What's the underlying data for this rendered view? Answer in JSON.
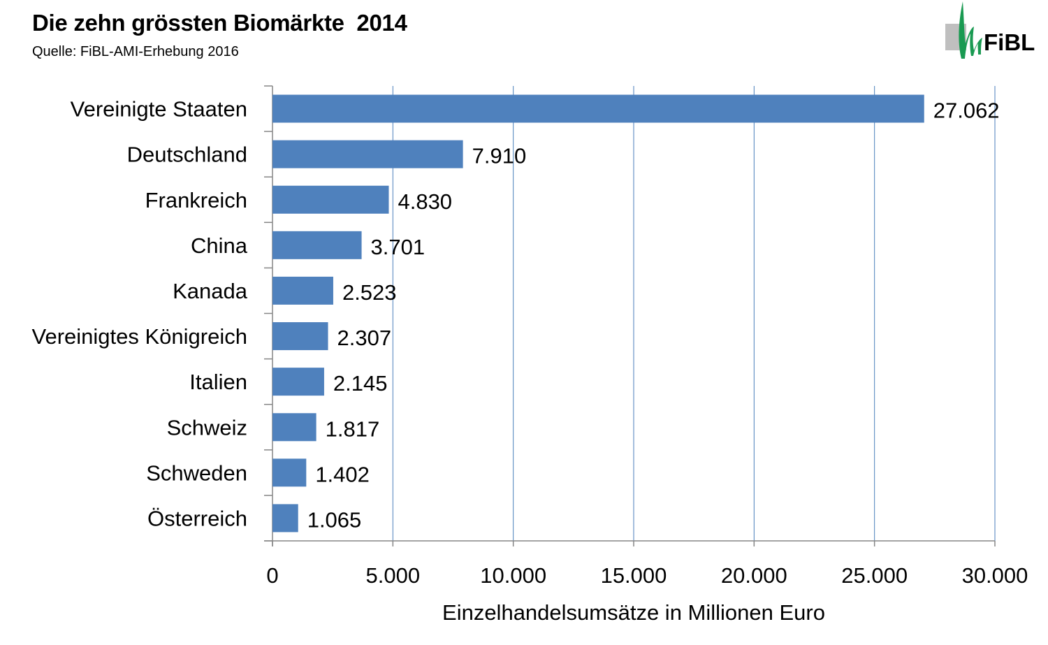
{
  "header": {
    "title": "Die zehn grössten Biomärkte  2014",
    "source": "Quelle: FiBL-AMI-Erhebung 2016"
  },
  "logo": {
    "text": "FiBL",
    "accent_color": "#1a9a52",
    "gray_color": "#bfbfbf"
  },
  "chart_data": {
    "type": "bar",
    "orientation": "horizontal",
    "title": "Die zehn grössten Biomärkte  2014",
    "xlabel": "Einzelhandelsumsätze in Millionen Euro",
    "ylabel": "",
    "xlim": [
      0,
      30000
    ],
    "x_ticks": [
      0,
      5000,
      10000,
      15000,
      20000,
      25000,
      30000
    ],
    "x_tick_labels": [
      "0",
      "5.000",
      "10.000",
      "15.000",
      "20.000",
      "25.000",
      "30.000"
    ],
    "grid": "vertical",
    "bar_color": "#4f81bd",
    "categories": [
      "Vereinigte Staaten",
      "Deutschland",
      "Frankreich",
      "China",
      "Kanada",
      "Vereinigtes Königreich",
      "Italien",
      "Schweiz",
      "Schweden",
      "Österreich"
    ],
    "values": [
      27062,
      7910,
      4830,
      3701,
      2523,
      2307,
      2145,
      1817,
      1402,
      1065
    ],
    "value_labels": [
      "27.062",
      "7.910",
      "4.830",
      "3.701",
      "2.523",
      "2.307",
      "2.145",
      "1.817",
      "1.402",
      "1.065"
    ]
  }
}
